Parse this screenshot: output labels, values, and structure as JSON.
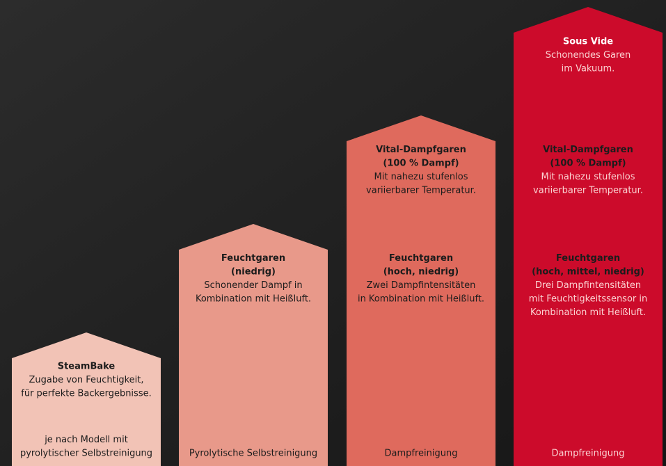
{
  "columns": [
    {
      "features": [
        {
          "title": [
            "SteamBake"
          ],
          "text": [
            "Zugabe von Feuchtigkeit,",
            "für perfekte Backergebnisse."
          ]
        }
      ],
      "footer": [
        "je nach Modell mit",
        "pyrolytischer Selbstreinigung"
      ]
    },
    {
      "features": [
        {
          "title": [
            "Feuchtgaren",
            "(niedrig)"
          ],
          "text": [
            "Schonender Dampf in",
            "Kombination mit Heißluft."
          ]
        }
      ],
      "footer": [
        "Pyrolytische Selbstreinigung"
      ]
    },
    {
      "features": [
        {
          "title": [
            "Vital-Dampfgaren",
            "(100 % Dampf)"
          ],
          "text": [
            "Mit nahezu stufenlos",
            "variierbarer Temperatur."
          ]
        },
        {
          "title": [
            "Feuchtgaren",
            "(hoch, niedrig)"
          ],
          "text": [
            "Zwei Dampfintensitäten",
            "in Kombination mit Heißluft."
          ]
        }
      ],
      "footer": [
        "Dampfreinigung"
      ]
    },
    {
      "features": [
        {
          "title": [
            "Sous Vide"
          ],
          "text": [
            "Schonendes Garen",
            "im Vakuum."
          ]
        },
        {
          "title": [
            "Vital-Dampfgaren",
            "(100 % Dampf)"
          ],
          "text": [
            "Mit nahezu stufenlos",
            "variierbarer Temperatur."
          ]
        },
        {
          "title": [
            "Feuchtgaren",
            "(hoch, mittel, niedrig)"
          ],
          "text": [
            "Drei Dampfintensitäten",
            "mit Feuchtigkeitssensor in",
            "Kombination mit Heißluft."
          ]
        }
      ],
      "footer": [
        "Dampfreinigung"
      ]
    }
  ]
}
